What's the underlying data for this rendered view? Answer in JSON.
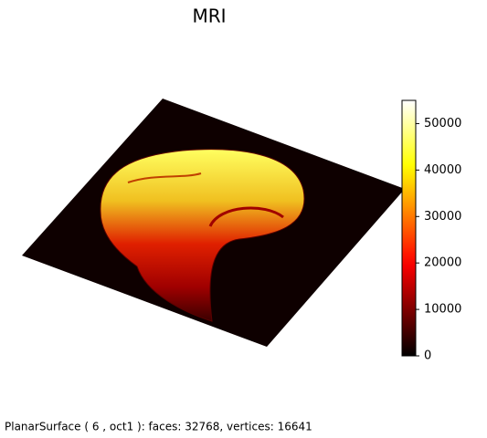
{
  "chart_data": {
    "type": "surface",
    "title": "MRI",
    "colormap": "hot",
    "clim": [
      0,
      55000
    ],
    "cticks": [
      0,
      10000,
      20000,
      30000,
      40000,
      50000
    ],
    "caption": "PlanarSurface ( 6 , oct1 ):  faces: 32768,  vertices: 16641"
  }
}
